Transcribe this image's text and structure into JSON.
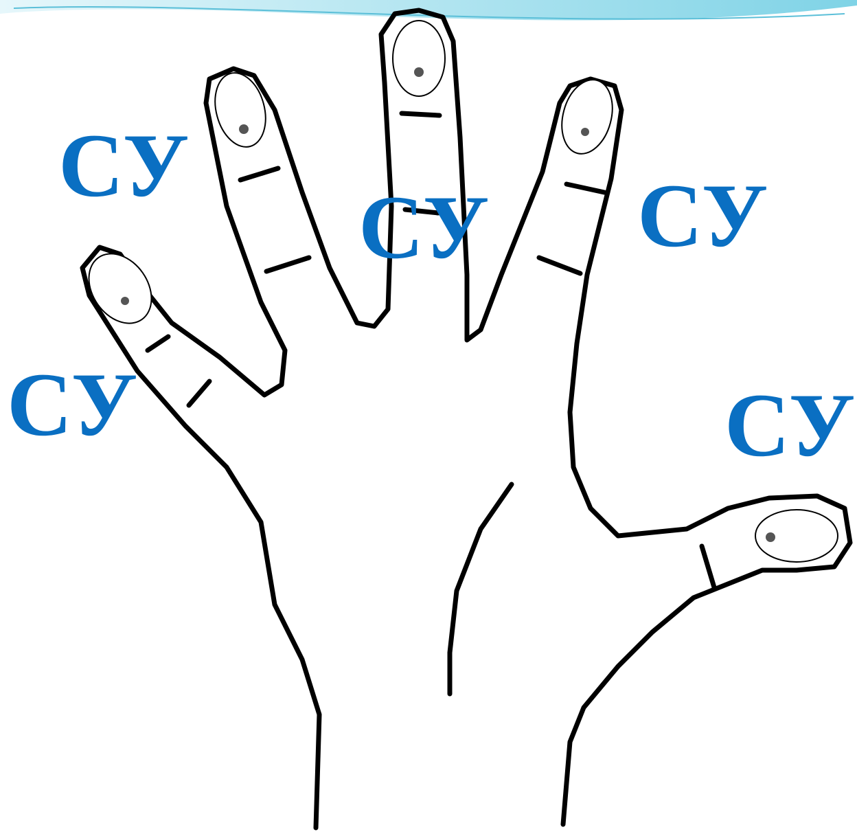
{
  "labels": [
    "СУ",
    "СУ",
    "СУ",
    "СУ",
    "СУ"
  ]
}
